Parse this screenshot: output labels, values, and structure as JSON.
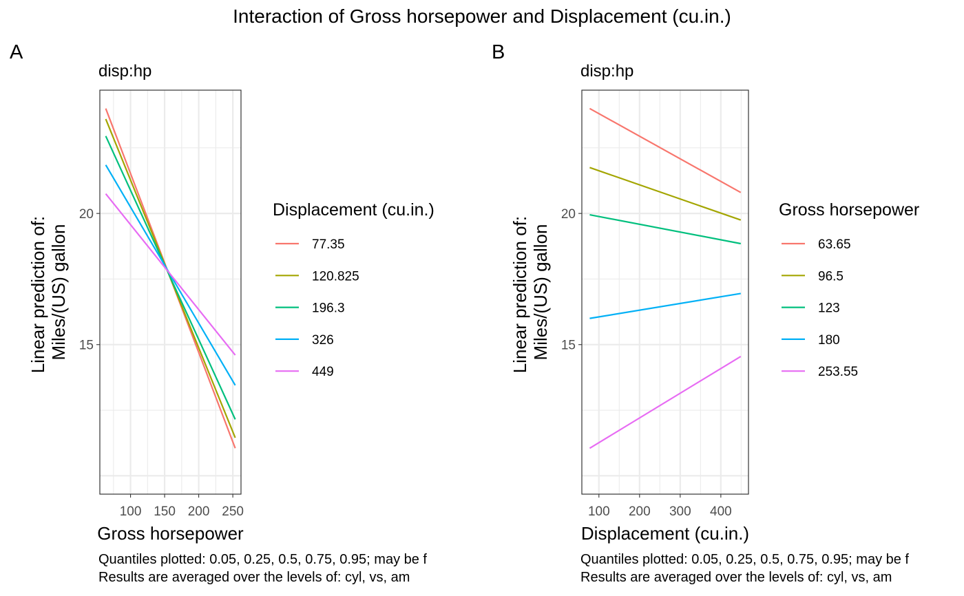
{
  "title": "Interaction of Gross horsepower and Displacement (cu.in.)",
  "chart_data": [
    {
      "type": "line",
      "tag": "A",
      "subtitle": "disp:hp",
      "xlabel": "Gross horsepower",
      "ylabel_line1": "Linear prediction of:",
      "ylabel_line2": "Miles/(US) gallon",
      "xlim": [
        55,
        262
      ],
      "ylim": [
        9.3,
        24.7
      ],
      "xticks": [
        100,
        150,
        200,
        250
      ],
      "yticks": [
        15,
        20
      ],
      "grid": true,
      "legend_title": "Displacement (cu.in.)",
      "legend_position": "right",
      "x": [
        63.65,
        253.55
      ],
      "series": [
        {
          "name": "77.35",
          "color": "#F8766D",
          "values": [
            24.0,
            11.05
          ]
        },
        {
          "name": "120.825",
          "color": "#A3A500",
          "values": [
            23.6,
            11.45
          ]
        },
        {
          "name": "196.3",
          "color": "#00BF7D",
          "values": [
            22.95,
            12.15
          ]
        },
        {
          "name": "326",
          "color": "#00B0F6",
          "values": [
            21.85,
            13.45
          ]
        },
        {
          "name": "449",
          "color": "#E76BF3",
          "values": [
            20.75,
            14.6
          ]
        }
      ],
      "caption_line1": "Quantiles plotted: 0.05, 0.25, 0.5, 0.75, 0.95; may be f",
      "caption_line2": "Results are averaged over the levels of: cyl, vs, am"
    },
    {
      "type": "line",
      "tag": "B",
      "subtitle": "disp:hp",
      "xlabel": "Displacement (cu.in.)",
      "ylabel_line1": "Linear prediction of:",
      "ylabel_line2": "Miles/(US) gallon",
      "xlim": [
        58,
        468
      ],
      "ylim": [
        9.3,
        24.7
      ],
      "xticks": [
        100,
        200,
        300,
        400
      ],
      "yticks": [
        15,
        20
      ],
      "grid": true,
      "legend_title": "Gross horsepower",
      "legend_position": "right",
      "x": [
        77.35,
        449
      ],
      "series": [
        {
          "name": "63.65",
          "color": "#F8766D",
          "values": [
            24.0,
            20.8
          ]
        },
        {
          "name": "96.5",
          "color": "#A3A500",
          "values": [
            21.75,
            19.75
          ]
        },
        {
          "name": "123",
          "color": "#00BF7D",
          "values": [
            19.95,
            18.85
          ]
        },
        {
          "name": "180",
          "color": "#00B0F6",
          "values": [
            16.0,
            16.95
          ]
        },
        {
          "name": "253.55",
          "color": "#E76BF3",
          "values": [
            11.05,
            14.55
          ]
        }
      ],
      "caption_line1": "Quantiles plotted: 0.05, 0.25, 0.5, 0.75, 0.95; may be f",
      "caption_line2": "Results are averaged over the levels of: cyl, vs, am"
    }
  ]
}
